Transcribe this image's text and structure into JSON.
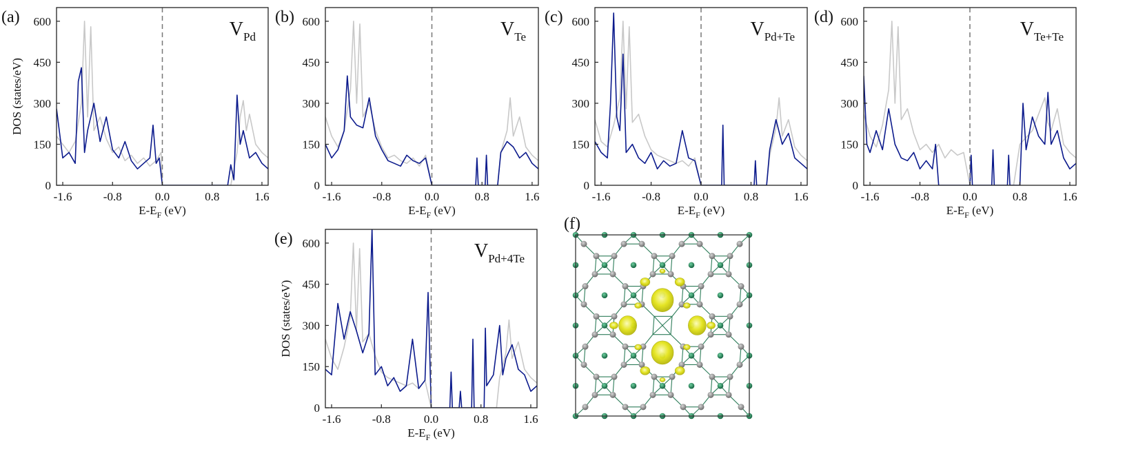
{
  "figure": {
    "panels": [
      {
        "label": "(a)",
        "title_main": "V",
        "title_sub": "Pd"
      },
      {
        "label": "(b)",
        "title_main": "V",
        "title_sub": "Te"
      },
      {
        "label": "(c)",
        "title_main": "V",
        "title_sub": "Pd+Te"
      },
      {
        "label": "(d)",
        "title_main": "V",
        "title_sub": "Te+Te"
      },
      {
        "label": "(e)",
        "title_main": "V",
        "title_sub": "Pd+4Te"
      }
    ],
    "structure_panel_label": "(f)",
    "xlabel_main": "E-E",
    "xlabel_sub": "F",
    "xlabel_units": " (eV)",
    "ylabel": "DOS (states/eV)",
    "x_tick_labels": [
      "-1.6",
      "-0.8",
      "0.0",
      "0.8",
      "1.6"
    ],
    "y_tick_labels": [
      "0",
      "150",
      "300",
      "450",
      "600"
    ]
  },
  "chart_data": [
    {
      "type": "line",
      "panel": "(a)",
      "title": "VPd",
      "xlim": [
        -1.7,
        1.7
      ],
      "ylim": [
        0,
        650
      ],
      "x_ticks": [
        -1.6,
        -0.8,
        0.0,
        0.8,
        1.6
      ],
      "y_ticks": [
        0,
        150,
        300,
        450,
        600
      ],
      "fermi_level": 0.0,
      "series": [
        {
          "color": "#c8c8c8",
          "x": [
            -1.7,
            -1.6,
            -1.5,
            -1.4,
            -1.3,
            -1.25,
            -1.2,
            -1.15,
            -1.1,
            -1.0,
            -0.9,
            -0.8,
            -0.7,
            -0.6,
            -0.5,
            -0.4,
            -0.3,
            -0.2,
            -0.1,
            -0.02,
            0.0,
            1.1,
            1.2,
            1.25,
            1.3,
            1.35,
            1.4,
            1.5,
            1.6,
            1.7
          ],
          "values": [
            180,
            150,
            120,
            160,
            300,
            600,
            250,
            580,
            200,
            250,
            170,
            120,
            140,
            90,
            110,
            80,
            100,
            70,
            90,
            120,
            0,
            0,
            120,
            250,
            310,
            200,
            260,
            150,
            120,
            100
          ]
        },
        {
          "color": "#0b1a8c",
          "x": [
            -1.7,
            -1.6,
            -1.5,
            -1.4,
            -1.35,
            -1.3,
            -1.25,
            -1.2,
            -1.1,
            -1.0,
            -0.9,
            -0.8,
            -0.7,
            -0.6,
            -0.5,
            -0.4,
            -0.3,
            -0.2,
            -0.15,
            -0.1,
            -0.05,
            0.0,
            1.05,
            1.1,
            1.15,
            1.2,
            1.25,
            1.3,
            1.4,
            1.5,
            1.6,
            1.7
          ],
          "values": [
            280,
            100,
            120,
            80,
            380,
            430,
            120,
            200,
            300,
            160,
            250,
            130,
            100,
            160,
            90,
            60,
            80,
            100,
            220,
            80,
            100,
            0,
            0,
            75,
            20,
            330,
            150,
            200,
            100,
            120,
            80,
            60
          ]
        }
      ]
    },
    {
      "type": "line",
      "panel": "(b)",
      "title": "VTe",
      "xlim": [
        -1.7,
        1.7
      ],
      "ylim": [
        0,
        650
      ],
      "x_ticks": [
        -1.6,
        -0.8,
        0.0,
        0.8,
        1.6
      ],
      "y_ticks": [
        0,
        150,
        300,
        450,
        600
      ],
      "fermi_level": 0.0,
      "series": [
        {
          "color": "#c8c8c8",
          "x": [
            -1.7,
            -1.6,
            -1.5,
            -1.4,
            -1.3,
            -1.25,
            -1.2,
            -1.15,
            -1.1,
            -1.0,
            -0.9,
            -0.8,
            -0.7,
            -0.6,
            -0.5,
            -0.4,
            -0.3,
            -0.2,
            -0.1,
            0.0,
            1.05,
            1.1,
            1.2,
            1.25,
            1.3,
            1.4,
            1.5,
            1.6,
            1.7
          ],
          "values": [
            250,
            180,
            140,
            200,
            350,
            600,
            300,
            590,
            250,
            300,
            200,
            140,
            100,
            110,
            90,
            80,
            100,
            70,
            110,
            0,
            0,
            120,
            200,
            320,
            180,
            250,
            140,
            110,
            90
          ]
        },
        {
          "color": "#0b1a8c",
          "x": [
            -1.7,
            -1.6,
            -1.5,
            -1.4,
            -1.35,
            -1.3,
            -1.2,
            -1.1,
            -1.0,
            -0.9,
            -0.8,
            -0.7,
            -0.6,
            -0.5,
            -0.4,
            -0.3,
            -0.2,
            -0.1,
            0.0,
            0.7,
            0.72,
            0.74,
            0.85,
            0.87,
            0.89,
            1.05,
            1.1,
            1.2,
            1.3,
            1.4,
            1.5,
            1.6,
            1.7
          ],
          "values": [
            150,
            100,
            130,
            200,
            400,
            250,
            220,
            210,
            320,
            180,
            130,
            90,
            80,
            70,
            110,
            90,
            80,
            100,
            0,
            0,
            100,
            0,
            0,
            110,
            0,
            0,
            120,
            160,
            140,
            100,
            120,
            80,
            60
          ]
        }
      ]
    },
    {
      "type": "line",
      "panel": "(c)",
      "title": "VPd+Te",
      "xlim": [
        -1.7,
        1.7
      ],
      "ylim": [
        0,
        650
      ],
      "x_ticks": [
        -1.6,
        -0.8,
        0.0,
        0.8,
        1.6
      ],
      "y_ticks": [
        0,
        150,
        300,
        450,
        600
      ],
      "fermi_level": 0.0,
      "series": [
        {
          "color": "#c8c8c8",
          "x": [
            -1.7,
            -1.6,
            -1.5,
            -1.4,
            -1.3,
            -1.25,
            -1.2,
            -1.15,
            -1.1,
            -1.0,
            -0.9,
            -0.8,
            -0.7,
            -0.6,
            -0.5,
            -0.4,
            -0.3,
            -0.2,
            -0.1,
            0.0,
            1.05,
            1.1,
            1.2,
            1.25,
            1.3,
            1.4,
            1.5,
            1.6,
            1.7
          ],
          "values": [
            240,
            160,
            140,
            220,
            320,
            600,
            280,
            580,
            230,
            260,
            180,
            130,
            110,
            100,
            90,
            80,
            90,
            70,
            100,
            0,
            0,
            110,
            210,
            320,
            180,
            240,
            140,
            110,
            90
          ]
        },
        {
          "color": "#0b1a8c",
          "x": [
            -1.7,
            -1.6,
            -1.5,
            -1.45,
            -1.4,
            -1.35,
            -1.3,
            -1.25,
            -1.2,
            -1.1,
            -1.0,
            -0.9,
            -0.8,
            -0.7,
            -0.6,
            -0.5,
            -0.4,
            -0.3,
            -0.2,
            -0.1,
            0.0,
            0.33,
            0.35,
            0.37,
            0.85,
            0.87,
            0.89,
            1.05,
            1.1,
            1.2,
            1.3,
            1.4,
            1.5,
            1.6,
            1.7
          ],
          "values": [
            160,
            120,
            100,
            300,
            630,
            250,
            200,
            480,
            120,
            150,
            100,
            80,
            120,
            60,
            90,
            70,
            80,
            200,
            100,
            90,
            0,
            0,
            220,
            0,
            0,
            90,
            0,
            0,
            130,
            240,
            150,
            190,
            100,
            80,
            60
          ]
        }
      ]
    },
    {
      "type": "line",
      "panel": "(d)",
      "title": "VTe+Te",
      "xlim": [
        -1.7,
        1.7
      ],
      "ylim": [
        0,
        650
      ],
      "x_ticks": [
        -1.6,
        -0.8,
        0.0,
        0.8,
        1.6
      ],
      "y_ticks": [
        0,
        150,
        300,
        450,
        600
      ],
      "fermi_level": 0.0,
      "series": [
        {
          "color": "#c8c8c8",
          "x": [
            -1.7,
            -1.6,
            -1.5,
            -1.4,
            -1.3,
            -1.25,
            -1.2,
            -1.15,
            -1.1,
            -1.0,
            -0.9,
            -0.8,
            -0.7,
            -0.6,
            -0.5,
            -0.4,
            -0.3,
            -0.2,
            -0.1,
            0.0,
            0.7,
            0.8,
            1.0,
            1.1,
            1.2,
            1.25,
            1.3,
            1.4,
            1.5,
            1.6,
            1.7
          ],
          "values": [
            260,
            180,
            140,
            220,
            350,
            600,
            300,
            580,
            240,
            280,
            190,
            130,
            150,
            120,
            150,
            100,
            130,
            110,
            120,
            0,
            0,
            150,
            200,
            260,
            320,
            230,
            200,
            280,
            150,
            120,
            100
          ]
        },
        {
          "color": "#0b1a8c",
          "x": [
            -1.7,
            -1.65,
            -1.6,
            -1.5,
            -1.4,
            -1.3,
            -1.2,
            -1.1,
            -1.0,
            -0.9,
            -0.8,
            -0.7,
            -0.6,
            -0.55,
            -0.5,
            0.0,
            0.02,
            0.04,
            0.35,
            0.37,
            0.39,
            0.6,
            0.62,
            0.64,
            0.8,
            0.85,
            0.9,
            1.0,
            1.1,
            1.2,
            1.25,
            1.3,
            1.4,
            1.5,
            1.6,
            1.7
          ],
          "values": [
            400,
            150,
            120,
            200,
            130,
            280,
            150,
            100,
            90,
            120,
            60,
            90,
            60,
            150,
            0,
            0,
            110,
            0,
            0,
            130,
            0,
            0,
            110,
            0,
            0,
            300,
            130,
            250,
            180,
            150,
            340,
            150,
            200,
            100,
            60,
            80
          ]
        }
      ]
    },
    {
      "type": "line",
      "panel": "(e)",
      "title": "VPd+4Te",
      "xlim": [
        -1.7,
        1.7
      ],
      "ylim": [
        0,
        650
      ],
      "x_ticks": [
        -1.6,
        -0.8,
        0.0,
        0.8,
        1.6
      ],
      "y_ticks": [
        0,
        150,
        300,
        450,
        600
      ],
      "fermi_level": 0.0,
      "series": [
        {
          "color": "#c8c8c8",
          "x": [
            -1.7,
            -1.6,
            -1.5,
            -1.4,
            -1.3,
            -1.25,
            -1.2,
            -1.15,
            -1.1,
            -1.0,
            -0.9,
            -0.8,
            -0.7,
            -0.6,
            -0.5,
            -0.4,
            -0.3,
            -0.2,
            -0.1,
            0.0,
            1.05,
            1.1,
            1.2,
            1.25,
            1.3,
            1.4,
            1.5,
            1.6,
            1.7
          ],
          "values": [
            250,
            180,
            140,
            220,
            330,
            600,
            280,
            580,
            240,
            270,
            190,
            130,
            110,
            100,
            90,
            80,
            90,
            70,
            100,
            0,
            0,
            110,
            200,
            320,
            180,
            240,
            140,
            110,
            90
          ]
        },
        {
          "color": "#0b1a8c",
          "x": [
            -1.7,
            -1.6,
            -1.5,
            -1.4,
            -1.3,
            -1.2,
            -1.1,
            -1.0,
            -0.95,
            -0.9,
            -0.8,
            -0.7,
            -0.6,
            -0.5,
            -0.4,
            -0.3,
            -0.2,
            -0.1,
            -0.05,
            0.0,
            0.3,
            0.32,
            0.34,
            0.45,
            0.47,
            0.49,
            0.65,
            0.67,
            0.69,
            0.85,
            0.87,
            0.89,
            1.0,
            1.1,
            1.15,
            1.2,
            1.3,
            1.4,
            1.5,
            1.6,
            1.7
          ],
          "values": [
            140,
            120,
            380,
            250,
            350,
            280,
            200,
            270,
            650,
            120,
            150,
            80,
            110,
            60,
            80,
            250,
            70,
            100,
            420,
            0,
            0,
            130,
            0,
            0,
            60,
            0,
            0,
            250,
            0,
            0,
            290,
            80,
            120,
            300,
            120,
            180,
            230,
            140,
            120,
            60,
            80
          ]
        }
      ]
    }
  ],
  "structure": {
    "label": "(f)",
    "atom_colors": {
      "green": "#1f8a5a",
      "gray": "#8a8a8a",
      "isosurface": "#e6e617"
    }
  }
}
